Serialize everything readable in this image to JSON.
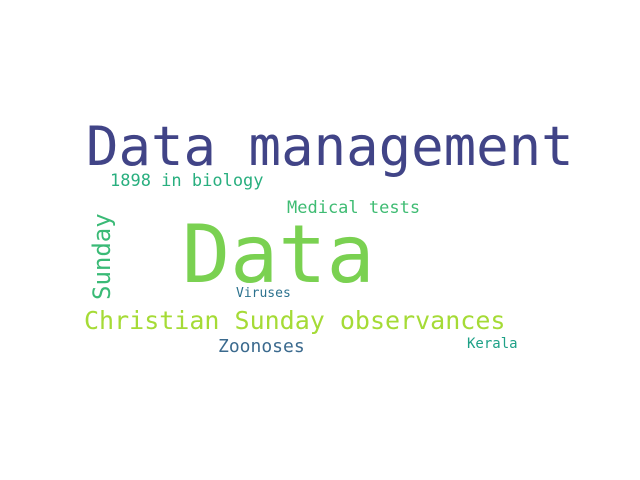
{
  "word_cloud": {
    "background_color": "#ffffff",
    "words": [
      {
        "text": "Data management",
        "color": "#414487"
      },
      {
        "text": "1898 in biology",
        "color": "#29af7f"
      },
      {
        "text": "Medical tests",
        "color": "#3fbc73"
      },
      {
        "text": "Data",
        "color": "#7ad151"
      },
      {
        "text": "Sunday",
        "color": "#3aba76"
      },
      {
        "text": "Viruses",
        "color": "#2c728e"
      },
      {
        "text": "Christian Sunday observances",
        "color": "#a5db36"
      },
      {
        "text": "Zoonoses",
        "color": "#3b6a8e"
      },
      {
        "text": "Kerala",
        "color": "#1fa187"
      }
    ]
  }
}
